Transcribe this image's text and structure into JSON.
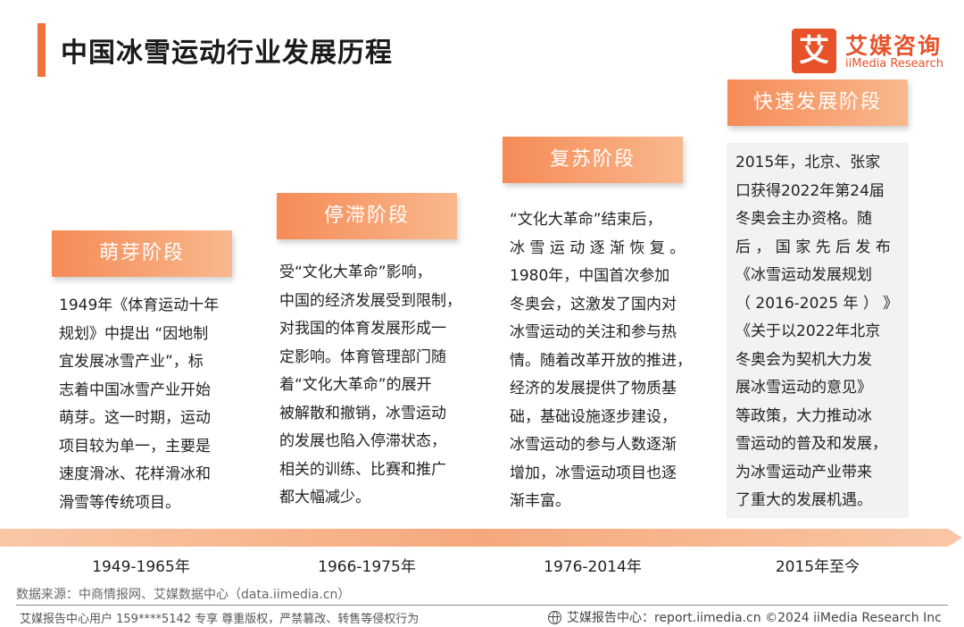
{
  "header": {
    "title": "中国冰雪运动行业发展历程"
  },
  "logo": {
    "mark": "艾",
    "name_cn": "艾媒咨询",
    "name_en": "iiMedia Research",
    "color": "#e8522a"
  },
  "stages": [
    {
      "name": "萌芽阶段",
      "years": "1949-1965年",
      "lines": [
        "1949年《体育运动十年",
        "规划》中提出 “因地制",
        "宜发展冰雪产业”，标",
        "志着中国冰雪产业开始",
        "萌芽。这一时期，运动",
        "项目较为单一，主要是",
        "速度滑冰、花样滑冰和",
        "滑雪等传统项目。"
      ]
    },
    {
      "name": "停滞阶段",
      "years": "1966-1975年",
      "lines": [
        "受“文化大革命”影响，",
        "中国的经济发展受到限制，",
        "对我国的体育发展形成一",
        "定影响。体育管理部门随",
        "着“文化大革命”的展开",
        "被解散和撤销，冰雪运动",
        "的发展也陷入停滞状态，",
        "相关的训练、比赛和推广",
        "都大幅减少。"
      ]
    },
    {
      "name": "复苏阶段",
      "years": "1976-2014年",
      "lines": [
        "“文化大革命”结束后，",
        "冰 雪 运 动 逐 渐 恢 复 。",
        "1980年，中国首次参加",
        "冬奥会，这激发了国内对",
        "冰雪运动的关注和参与热",
        "情。随着改革开放的推进，",
        "经济的发展提供了物质基",
        "础，基础设施逐步建设，",
        "冰雪运动的参与人数逐渐",
        "增加，冰雪运动项目也逐",
        "渐丰富。"
      ]
    },
    {
      "name": "快速发展阶段",
      "years": "2015年至今",
      "lines": [
        "2015年，北京、张家",
        "口获得2022年第24届",
        "冬奥会主办资格。随",
        "后 ， 国 家 先 后 发 布",
        "《冰雪运动发展规划",
        "（ 2016-2025 年 ） 》",
        "《关于以2022年北京",
        "冬奥会为契机大力发",
        "展冰雪运动的意见》",
        "等政策，大力推动冰",
        "雪运动的普及和发展，",
        "为冰雪运动产业带来",
        "了重大的发展机遇。"
      ]
    }
  ],
  "source": "数据来源：中商情报网、艾媒数据中心（data.iimedia.cn）",
  "footer": {
    "left": "艾媒报告中心用户 159****5142 专享 尊重版权，严禁篡改、转售等侵权行为",
    "right": "艾媒报告中心：report.iimedia.cn  ©2024  iiMedia Research  Inc"
  },
  "colors": {
    "accent": "#f0723c",
    "stage_gradient_start": "#f68b57",
    "stage_gradient_end": "#f9b88d"
  }
}
